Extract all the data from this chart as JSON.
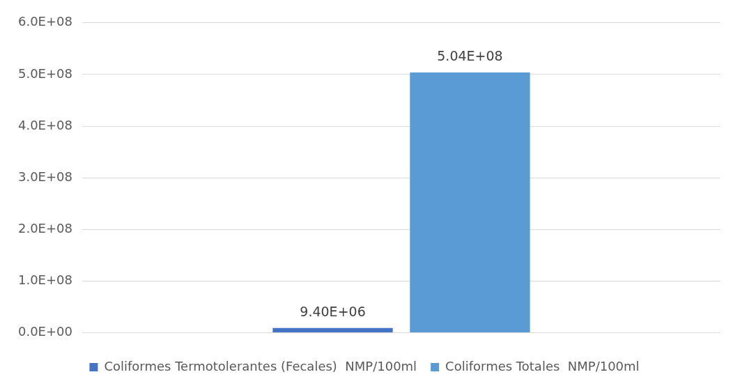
{
  "chart_data": {
    "type": "bar",
    "categories": [
      null
    ],
    "series": [
      {
        "name": "Coliformes Termotolerantes (Fecales)  NMP/100ml",
        "color": "#4472c4",
        "values": [
          9400000
        ],
        "value_labels": [
          "9.40E+06"
        ]
      },
      {
        "name": "Coliformes Totales  NMP/100ml",
        "color": "#5b9bd5",
        "values": [
          504000000
        ],
        "value_labels": [
          "5.04E+08"
        ]
      }
    ],
    "ylim": [
      0,
      600000000
    ],
    "yticks": [
      {
        "value": 0,
        "label": "0.0E+00"
      },
      {
        "value": 100000000,
        "label": "1.0E+08"
      },
      {
        "value": 200000000,
        "label": "2.0E+08"
      },
      {
        "value": 300000000,
        "label": "3.0E+08"
      },
      {
        "value": 400000000,
        "label": "4.0E+08"
      },
      {
        "value": 500000000,
        "label": "5.0E+08"
      },
      {
        "value": 600000000,
        "label": "6.0E+08"
      }
    ],
    "grid": "y",
    "legend": "bottom"
  }
}
